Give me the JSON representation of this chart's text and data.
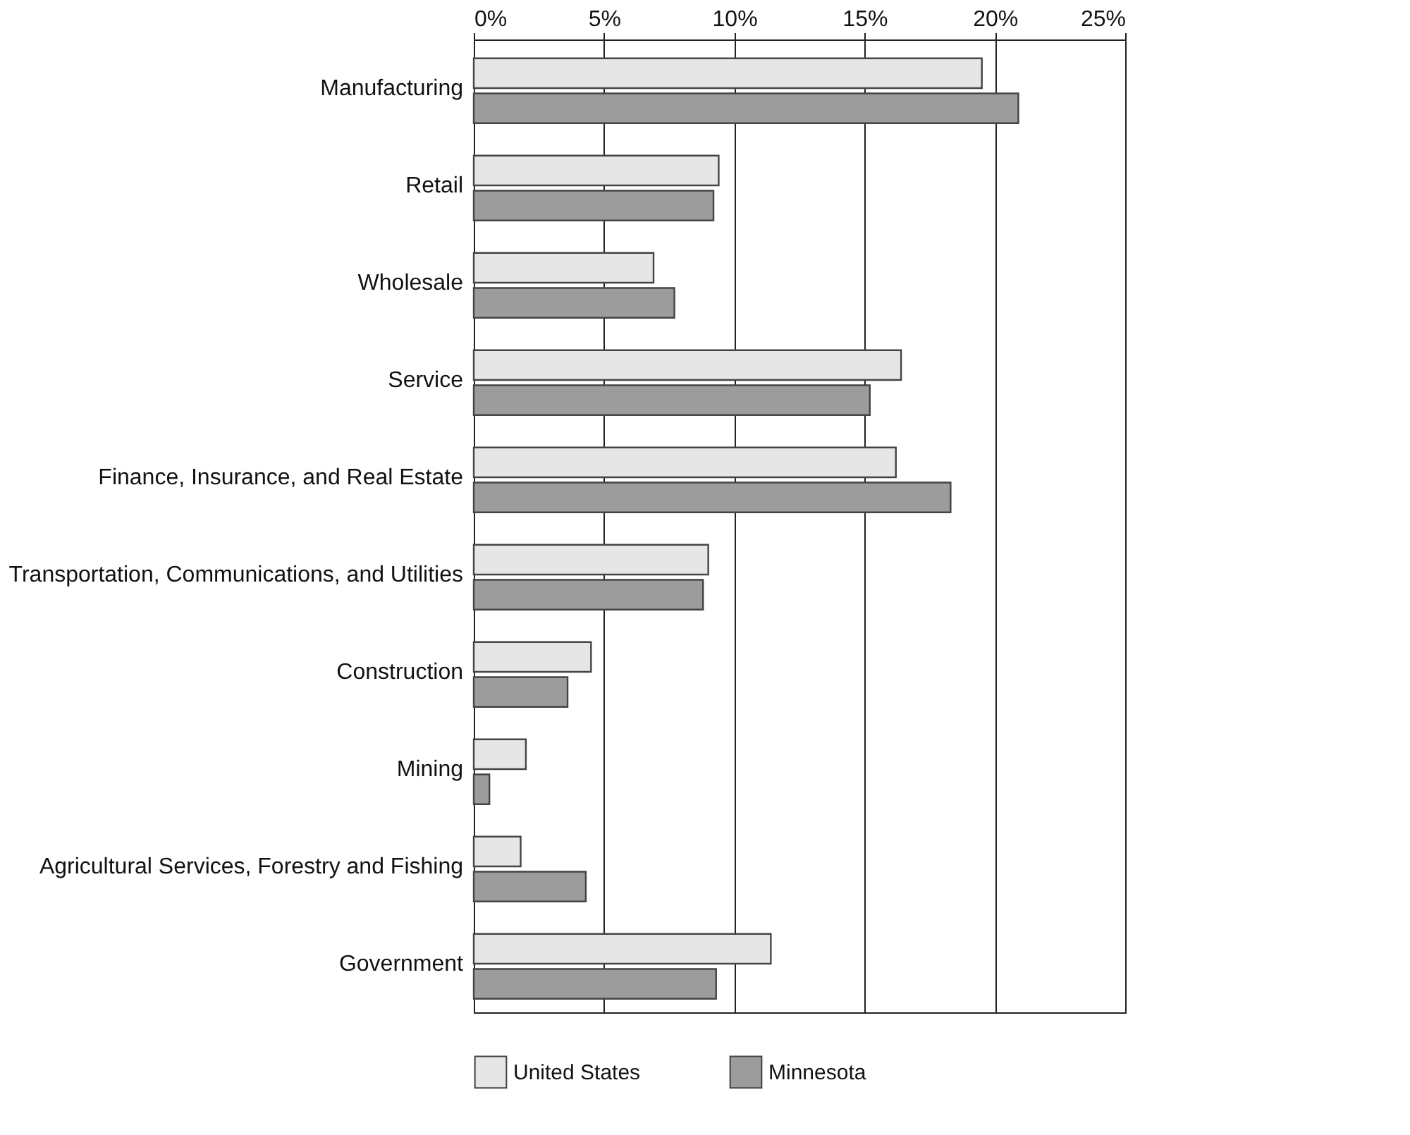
{
  "chart_data": {
    "type": "bar",
    "orientation": "horizontal",
    "categories": [
      "Manufacturing",
      "Retail",
      "Wholesale",
      "Service",
      "Finance, Insurance, and Real Estate",
      "Transportation, Communications, and Utilities",
      "Construction",
      "Mining",
      "Agricultural Services, Forestry and Fishing",
      "Government"
    ],
    "series": [
      {
        "name": "United States",
        "color": "#e6e6e6",
        "values": [
          19.5,
          9.4,
          6.9,
          16.4,
          16.2,
          9.0,
          4.5,
          2.0,
          1.8,
          11.4
        ]
      },
      {
        "name": "Minnesota",
        "color": "#9c9c9c",
        "values": [
          20.9,
          9.2,
          7.7,
          15.2,
          18.3,
          8.8,
          3.6,
          0.6,
          4.3,
          9.3
        ]
      }
    ],
    "xlim": [
      0,
      25
    ],
    "xticks": [
      {
        "value": 0,
        "label": "0%"
      },
      {
        "value": 5,
        "label": "5%"
      },
      {
        "value": 10,
        "label": "10%"
      },
      {
        "value": 15,
        "label": "15%"
      },
      {
        "value": 20,
        "label": "20%"
      },
      {
        "value": 25,
        "label": "25%"
      }
    ],
    "grid": "x",
    "legend": "bottom"
  }
}
